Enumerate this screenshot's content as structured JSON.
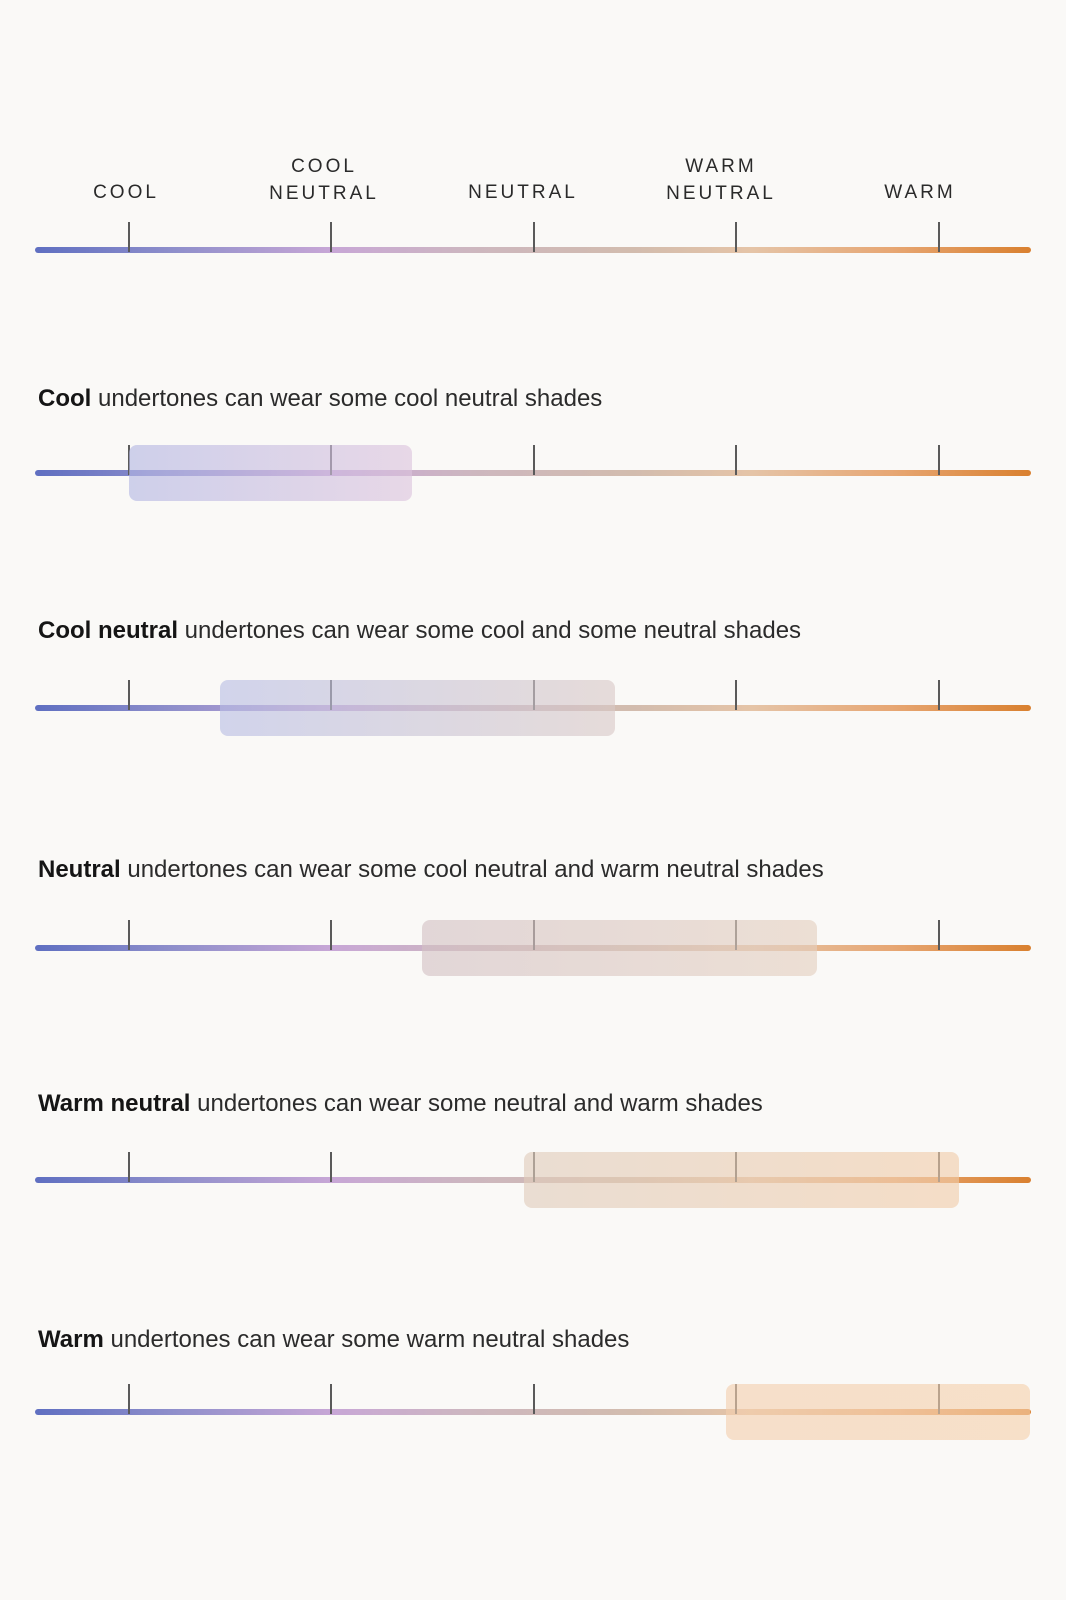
{
  "header": {
    "labels": [
      "COOL",
      "COOL\nNEUTRAL",
      "NEUTRAL",
      "WARM\nNEUTRAL",
      "WARM"
    ]
  },
  "colors": {
    "gradient_start": "#5f6fc1",
    "gradient_mid": "#cdb7bf",
    "gradient_end": "#d9802f",
    "tick": "#5a5a5a",
    "background": "#faf9f7"
  },
  "rows": [
    {
      "title": "Cool",
      "text": " undertones can wear some cool neutral shades",
      "range_start": 0.0,
      "range_end": 1.4,
      "band_color_start": "#b3b6e3",
      "band_color_end": "#dcc3dd"
    },
    {
      "title": "Cool neutral",
      "text": " undertones can wear some cool and some neutral shades",
      "range_start": 0.45,
      "range_end": 2.4,
      "band_color_start": "#b8bde4",
      "band_color_end": "#d9c9c7"
    },
    {
      "title": "Neutral",
      "text": " undertones can wear some cool neutral and warm neutral shades",
      "range_start": 1.45,
      "range_end": 3.4,
      "band_color_start": "#d3c1c4",
      "band_color_end": "#e4cfbf"
    },
    {
      "title": "Warm neutral",
      "text": " undertones can wear some neutral and warm shades",
      "range_start": 1.95,
      "range_end": 4.1,
      "band_color_start": "#e0ccbb",
      "band_color_end": "#f1cca9"
    },
    {
      "title": "Warm",
      "text": " undertones can wear some warm neutral shades",
      "range_start": 2.95,
      "range_end": 4.45,
      "band_color_start": "#f3cfae",
      "band_color_end": "#f5d0ac"
    }
  ]
}
